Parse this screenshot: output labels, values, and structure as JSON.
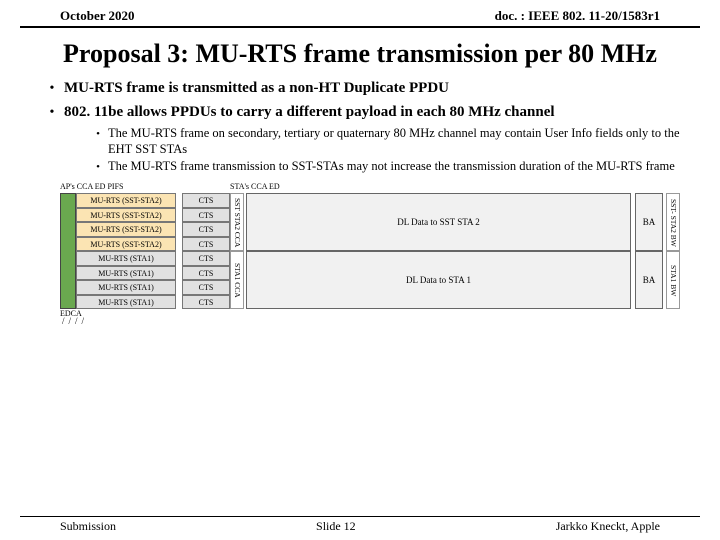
{
  "header": {
    "date": "October 2020",
    "docnum": "doc. : IEEE 802. 11-20/1583r1"
  },
  "title": "Proposal 3: MU-RTS frame transmission per 80 MHz",
  "bullets": {
    "b1": "MU-RTS frame is transmitted as a non-HT Duplicate PPDU",
    "b2": "802. 11be allows PPDUs to carry a different payload in each 80 MHz channel",
    "s1": "The MU-RTS frame on secondary, tertiary or quaternary 80 MHz channel may contain User Info fields only to the EHT SST STAs",
    "s2": "The MU-RTS frame transmission to SST-STAs may not increase the transmission duration of the MU-RTS frame"
  },
  "diagram": {
    "cap_ap": "AP's\nCCA ED\nPIFS",
    "cap_sta": "STA's\nCCA ED",
    "murts": {
      "r0": "MU-RTS (SST-STA2)",
      "r1": "MU-RTS (SST-STA2)",
      "r2": "MU-RTS (SST-STA2)",
      "r3": "MU-RTS (SST-STA2)",
      "r4": "MU-RTS (STA1)",
      "r5": "MU-RTS (STA1)",
      "r6": "MU-RTS (STA1)",
      "r7": "MU-RTS (STA1)"
    },
    "cts": "CTS",
    "vlab": {
      "sst": "SST STA2\nCCA",
      "sta1": "STA1 CCA"
    },
    "dl": {
      "d1": "DL Data to SST STA 2",
      "d2": "DL Data to STA 1"
    },
    "ba": "BA",
    "bw": {
      "b1": "SST- STA2\nBW",
      "b2": "STA1 BW"
    },
    "edca": "EDCA",
    "colors": {
      "pifs": "#6aa84f",
      "orange": "#fbe4b3",
      "grey": "#e1e1e1",
      "dl": "#f1f1f1"
    }
  },
  "footer": {
    "left": "Submission",
    "mid": "Slide 12",
    "right": "Jarkko Kneckt, Apple"
  }
}
